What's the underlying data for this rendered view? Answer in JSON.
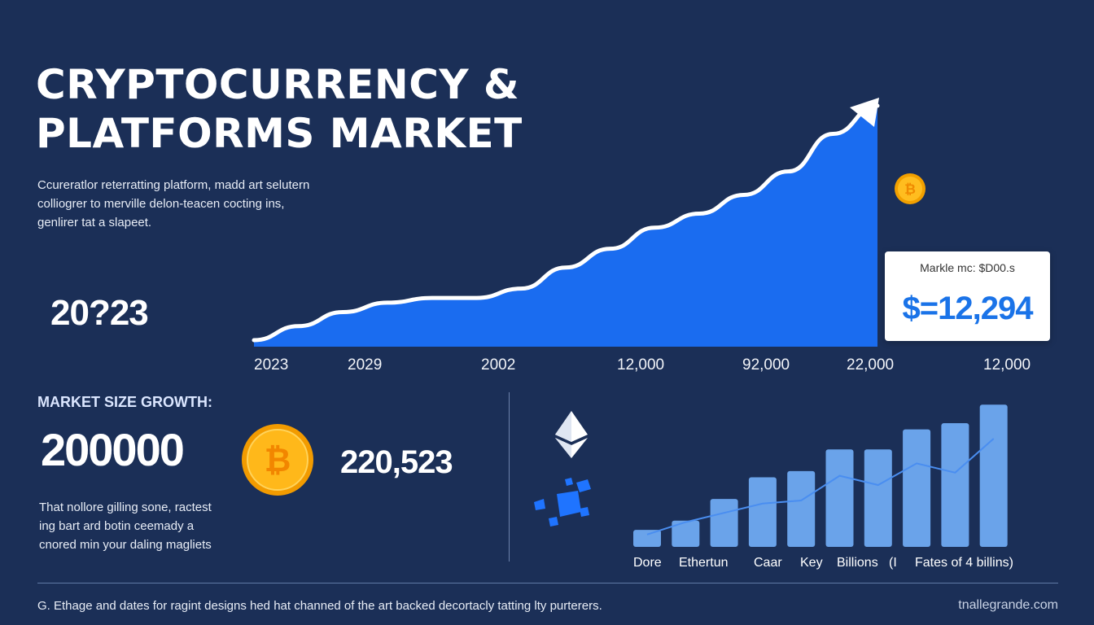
{
  "header": {
    "title_line1": "Cryptocurrency &",
    "title_line2": "Platforms Market",
    "description": [
      "Ccureratlor reterratting platform, madd art selutern",
      "colliogrer to merville delon-teacen cocting ins,",
      "genlirer tat a slapeet."
    ]
  },
  "hero": {
    "big_year": "20?23"
  },
  "tooltip": {
    "label": "Markle mc: $D00.s",
    "value": "$=12,294"
  },
  "market": {
    "heading": "MARKET SIZE GROWTH:",
    "big_number": "200000",
    "mid_number": "220,523",
    "note": [
      "That nollore gilling sone, ractest",
      "ing bart ard botin ceemady a",
      "cnored min your daling magliets"
    ]
  },
  "footer": {
    "text": "G. Ethage and dates for ragint designs hed hat channed of the art backed decortacly tatting lty purterers.",
    "brand": "tnallegrande.com"
  },
  "icons": {
    "coin": "bitcoin-coin-icon",
    "eth": "ethereum-icon",
    "blocks": "blockchain-blocks-icon"
  },
  "colors": {
    "background": "#1b2f57",
    "area_fill": "#1a6cf0",
    "bar_fill": "#6aa3ea",
    "coin": "#f7a800",
    "accent_text": "#1a73e8"
  },
  "chart_data": [
    {
      "type": "area",
      "title": "",
      "x_tick_labels": [
        "2023",
        "2029",
        "2002",
        "12,000",
        "92,000",
        "22,000",
        "12,000"
      ],
      "values": [
        0,
        6,
        12,
        16,
        18,
        18,
        22,
        31,
        39,
        48,
        54,
        62,
        72,
        88,
        100
      ],
      "ylim": [
        0,
        100
      ],
      "grid": false,
      "legend": "none",
      "trend_arrow": true
    },
    {
      "type": "bar",
      "title": "",
      "x_tick_labels": [
        "Dore",
        "Ethertun",
        "Caar",
        "Key",
        "Billions",
        "(I",
        "Fates of 4 billins)"
      ],
      "values": [
        11,
        17,
        31,
        45,
        49,
        63,
        63,
        76,
        80,
        92
      ],
      "line_values": [
        8,
        16,
        22,
        28,
        30,
        46,
        40,
        54,
        48,
        70
      ],
      "ylim": [
        0,
        100
      ],
      "grid": false,
      "legend": "none"
    }
  ]
}
